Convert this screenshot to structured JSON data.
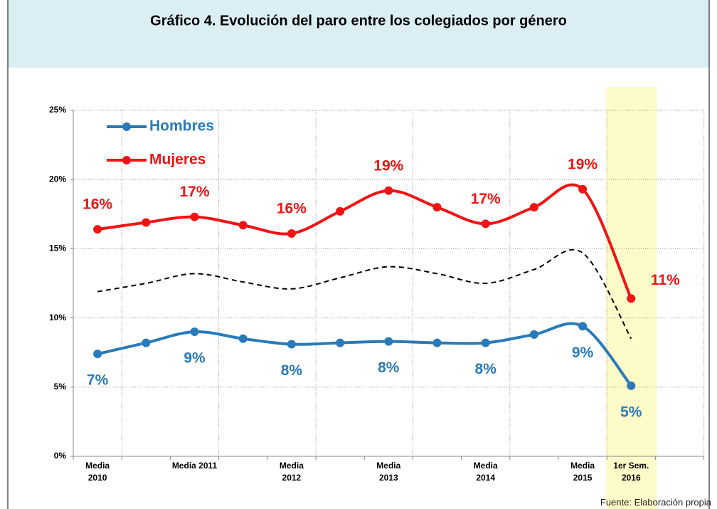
{
  "chart_data": {
    "type": "line",
    "title": "Gráfico 4. Evolución del paro entre los colegiados por género",
    "categories": [
      "Media 2010",
      null,
      "Media 2011",
      null,
      "Media 2012",
      null,
      "Media 2013",
      null,
      "Media 2014",
      null,
      "Media 2015",
      "1er Sem. 2016"
    ],
    "series": [
      {
        "name": "Hombres",
        "color": "#2a7ab9",
        "marker": true,
        "values": [
          7.4,
          8.2,
          9.0,
          8.5,
          8.1,
          8.2,
          8.3,
          8.2,
          8.2,
          8.8,
          9.4,
          5.1
        ],
        "value_labels": [
          "7%",
          null,
          "9%",
          null,
          "8%",
          null,
          "8%",
          null,
          "8%",
          null,
          "9%",
          "5%"
        ]
      },
      {
        "name": "Mujeres",
        "color": "#f01414",
        "marker": true,
        "values": [
          16.4,
          16.9,
          17.3,
          16.7,
          16.1,
          17.7,
          19.2,
          18.0,
          16.8,
          18.0,
          19.3,
          11.4
        ],
        "value_labels": [
          "16%",
          null,
          "17%",
          null,
          "16%",
          null,
          "19%",
          null,
          "17%",
          null,
          "19%",
          "11%"
        ]
      },
      {
        "color": "#000000",
        "dashed": true,
        "marker": false,
        "values": [
          11.9,
          12.5,
          13.2,
          12.6,
          12.1,
          12.9,
          13.7,
          13.2,
          12.5,
          13.5,
          14.7,
          8.5
        ]
      }
    ],
    "ylim": [
      0,
      25
    ],
    "yticks": [
      {
        "value": 0,
        "label": "0%"
      },
      {
        "value": 5,
        "label": "5%"
      },
      {
        "value": 10,
        "label": "10%"
      },
      {
        "value": 15,
        "label": "15%"
      },
      {
        "value": 20,
        "label": "20%"
      },
      {
        "value": 25,
        "label": "25%"
      }
    ],
    "grid": true,
    "legend": "top-left",
    "highlight_category": 11,
    "source": "Fuente: Elaboración propia"
  }
}
